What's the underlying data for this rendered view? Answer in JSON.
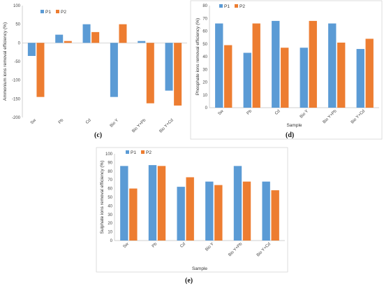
{
  "chart_data": [
    {
      "type": "bar",
      "panel_label": "(c)",
      "categories": [
        "Sw",
        "Pb",
        "Cd",
        "Bio Y",
        "Bio Y+Pb",
        "Bio Y+Cd"
      ],
      "series": [
        {
          "name": "P1",
          "color": "#5b9bd5",
          "values": [
            -35,
            22,
            50,
            -145,
            5,
            -128
          ]
        },
        {
          "name": "P2",
          "color": "#ed7d31",
          "values": [
            -145,
            5,
            29,
            50,
            -162,
            -168
          ]
        }
      ],
      "title": "",
      "xlabel": "",
      "ylabel": "Ammonium ions removal efficiency (%)",
      "ylim": [
        -200,
        100
      ],
      "yticks": [
        -200,
        -150,
        -100,
        -50,
        0,
        50,
        100
      ],
      "grid": false,
      "legend": "top-left"
    },
    {
      "type": "bar",
      "panel_label": "(d)",
      "categories": [
        "Sw",
        "Pb",
        "Cd",
        "Bio Y",
        "Bio Y+Pb",
        "Bio Y+Cd"
      ],
      "series": [
        {
          "name": "P1",
          "color": "#5b9bd5",
          "values": [
            66,
            43,
            68,
            47,
            66,
            46
          ]
        },
        {
          "name": "P2",
          "color": "#ed7d31",
          "values": [
            49,
            66,
            47,
            68,
            51,
            54
          ]
        }
      ],
      "title": "",
      "xlabel": "Sample",
      "ylabel": "Phosphate ions removal efficiency (%)",
      "ylim": [
        0,
        80
      ],
      "yticks": [
        0,
        10,
        20,
        30,
        40,
        50,
        60,
        70,
        80
      ],
      "grid": false,
      "legend": "top-left"
    },
    {
      "type": "bar",
      "panel_label": "(e)",
      "categories": [
        "Sw",
        "Pb",
        "Cd",
        "Bio Y",
        "Bio Y+Pb",
        "Bio Y+Cd"
      ],
      "series": [
        {
          "name": "P1",
          "color": "#5b9bd5",
          "values": [
            86,
            87,
            62,
            68,
            86,
            68
          ]
        },
        {
          "name": "P2",
          "color": "#ed7d31",
          "values": [
            60,
            86,
            73,
            64,
            68,
            58
          ]
        }
      ],
      "title": "",
      "xlabel": "Sample",
      "ylabel": "Sulphate ions removal efficiency (%)",
      "ylim": [
        0,
        100
      ],
      "yticks": [
        0,
        10,
        20,
        30,
        40,
        50,
        60,
        70,
        80,
        90,
        100
      ],
      "grid": false,
      "legend": "top-left"
    }
  ]
}
